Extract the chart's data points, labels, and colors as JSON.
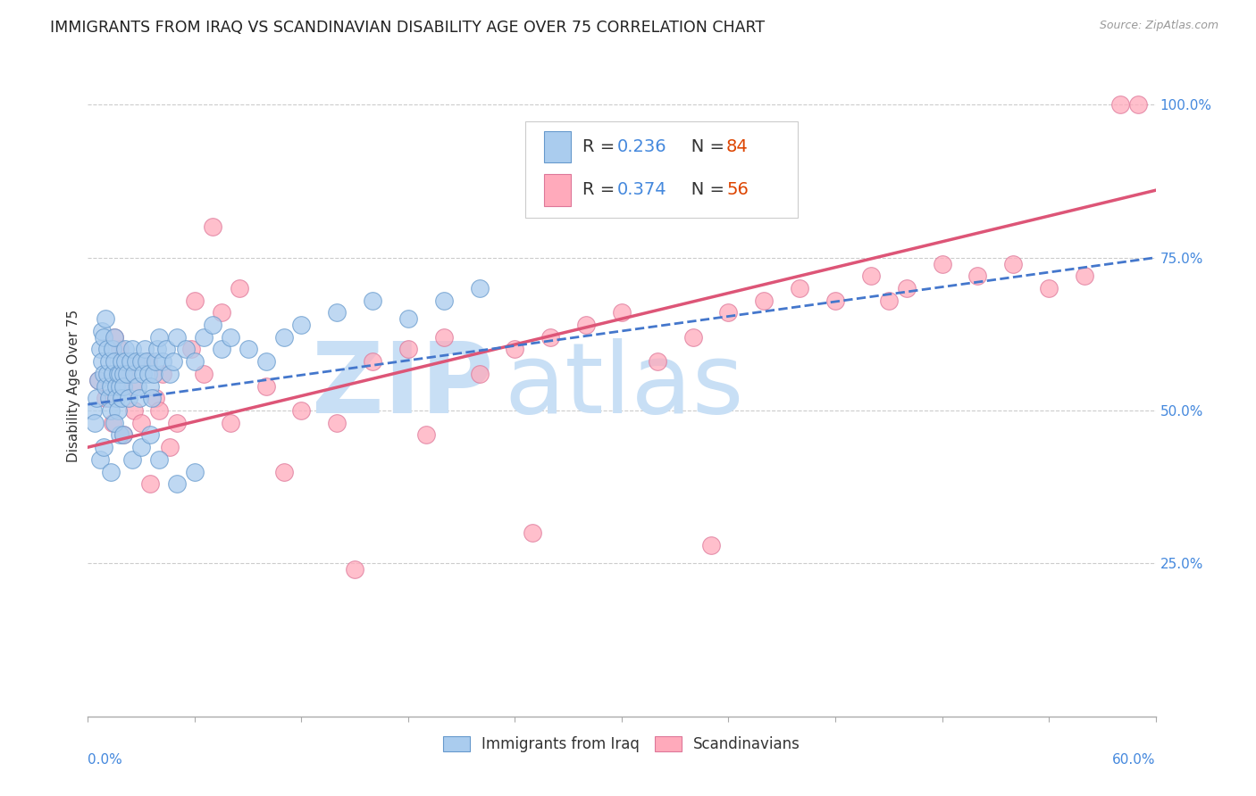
{
  "title": "IMMIGRANTS FROM IRAQ VS SCANDINAVIAN DISABILITY AGE OVER 75 CORRELATION CHART",
  "source": "Source: ZipAtlas.com",
  "ylabel": "Disability Age Over 75",
  "ylabel_right_ticks": [
    "25.0%",
    "50.0%",
    "75.0%",
    "100.0%"
  ],
  "ylabel_right_vals": [
    0.25,
    0.5,
    0.75,
    1.0
  ],
  "xmin": 0.0,
  "xmax": 0.6,
  "ymin": 0.0,
  "ymax": 1.08,
  "iraq_color": "#aaccee",
  "iraq_edge": "#6699cc",
  "scand_color": "#ffaabb",
  "scand_edge": "#dd7799",
  "trend_iraq_color": "#4477cc",
  "trend_scand_color": "#dd5577",
  "watermark_zip": "ZIP",
  "watermark_atlas": "atlas",
  "watermark_color": "#c8dff5",
  "grid_color": "#cccccc",
  "title_fontsize": 12.5,
  "axis_label_fontsize": 11,
  "tick_fontsize": 11,
  "legend_fontsize": 14,
  "iraq_R": 0.236,
  "iraq_N": 84,
  "scand_R": 0.374,
  "scand_N": 56,
  "trend_iraq_x0": 0.0,
  "trend_iraq_y0": 0.51,
  "trend_iraq_x1": 0.6,
  "trend_iraq_y1": 0.75,
  "trend_scand_x0": 0.0,
  "trend_scand_y0": 0.44,
  "trend_scand_x1": 0.6,
  "trend_scand_y1": 0.86,
  "iraq_points_x": [
    0.003,
    0.004,
    0.005,
    0.006,
    0.007,
    0.008,
    0.008,
    0.009,
    0.009,
    0.01,
    0.01,
    0.011,
    0.011,
    0.012,
    0.012,
    0.013,
    0.013,
    0.014,
    0.014,
    0.015,
    0.015,
    0.016,
    0.016,
    0.017,
    0.017,
    0.018,
    0.018,
    0.019,
    0.019,
    0.02,
    0.02,
    0.021,
    0.021,
    0.022,
    0.023,
    0.024,
    0.025,
    0.026,
    0.027,
    0.028,
    0.029,
    0.03,
    0.031,
    0.032,
    0.033,
    0.034,
    0.035,
    0.036,
    0.037,
    0.038,
    0.039,
    0.04,
    0.042,
    0.044,
    0.046,
    0.048,
    0.05,
    0.055,
    0.06,
    0.065,
    0.07,
    0.075,
    0.08,
    0.09,
    0.1,
    0.11,
    0.12,
    0.14,
    0.16,
    0.18,
    0.2,
    0.22,
    0.007,
    0.009,
    0.013,
    0.018,
    0.025,
    0.03,
    0.035,
    0.04,
    0.05,
    0.06,
    0.015,
    0.02
  ],
  "iraq_points_y": [
    0.5,
    0.48,
    0.52,
    0.55,
    0.6,
    0.63,
    0.58,
    0.56,
    0.62,
    0.65,
    0.54,
    0.6,
    0.56,
    0.58,
    0.52,
    0.54,
    0.5,
    0.56,
    0.6,
    0.62,
    0.58,
    0.54,
    0.52,
    0.56,
    0.5,
    0.54,
    0.56,
    0.52,
    0.58,
    0.56,
    0.54,
    0.6,
    0.58,
    0.56,
    0.52,
    0.58,
    0.6,
    0.56,
    0.58,
    0.54,
    0.52,
    0.58,
    0.56,
    0.6,
    0.58,
    0.56,
    0.54,
    0.52,
    0.56,
    0.58,
    0.6,
    0.62,
    0.58,
    0.6,
    0.56,
    0.58,
    0.62,
    0.6,
    0.58,
    0.62,
    0.64,
    0.6,
    0.62,
    0.6,
    0.58,
    0.62,
    0.64,
    0.66,
    0.68,
    0.65,
    0.68,
    0.7,
    0.42,
    0.44,
    0.4,
    0.46,
    0.42,
    0.44,
    0.46,
    0.42,
    0.38,
    0.4,
    0.48,
    0.46
  ],
  "scand_points_x": [
    0.006,
    0.01,
    0.014,
    0.018,
    0.022,
    0.026,
    0.03,
    0.034,
    0.038,
    0.042,
    0.046,
    0.05,
    0.058,
    0.065,
    0.075,
    0.085,
    0.1,
    0.12,
    0.14,
    0.16,
    0.18,
    0.2,
    0.22,
    0.24,
    0.26,
    0.28,
    0.3,
    0.32,
    0.34,
    0.36,
    0.38,
    0.4,
    0.42,
    0.44,
    0.46,
    0.48,
    0.5,
    0.52,
    0.54,
    0.56,
    0.58,
    0.59,
    0.015,
    0.025,
    0.06,
    0.08,
    0.15,
    0.25,
    0.35,
    0.45,
    0.02,
    0.04,
    0.035,
    0.07,
    0.11,
    0.19
  ],
  "scand_points_y": [
    0.55,
    0.52,
    0.48,
    0.6,
    0.56,
    0.5,
    0.48,
    0.58,
    0.52,
    0.56,
    0.44,
    0.48,
    0.6,
    0.56,
    0.66,
    0.7,
    0.54,
    0.5,
    0.48,
    0.58,
    0.6,
    0.62,
    0.56,
    0.6,
    0.62,
    0.64,
    0.66,
    0.58,
    0.62,
    0.66,
    0.68,
    0.7,
    0.68,
    0.72,
    0.7,
    0.74,
    0.72,
    0.74,
    0.7,
    0.72,
    1.0,
    1.0,
    0.62,
    0.54,
    0.68,
    0.48,
    0.24,
    0.3,
    0.28,
    0.68,
    0.46,
    0.5,
    0.38,
    0.8,
    0.4,
    0.46
  ]
}
